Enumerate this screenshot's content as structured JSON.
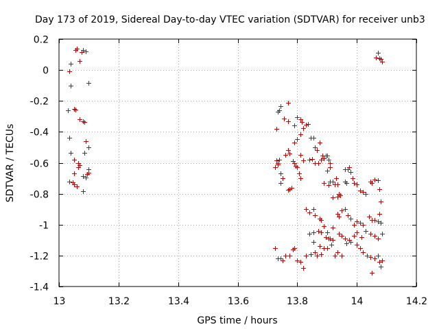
{
  "chart_data": {
    "type": "scatter",
    "title": "Day 173 of 2019, Sidereal Day-to-day VTEC variation (SDTVAR) for receiver unb3",
    "xlabel": "GPS time / hours",
    "ylabel": "SDTVAR / TECUs",
    "xlim": [
      13,
      14.2
    ],
    "ylim": [
      -1.4,
      0.2
    ],
    "xticks": [
      13,
      13.2,
      13.4,
      13.6,
      13.8,
      14,
      14.2
    ],
    "xtick_labels": [
      "13",
      "13.2",
      "13.4",
      "13.6",
      "13.8",
      "14",
      "14.2"
    ],
    "yticks": [
      0.2,
      0,
      -0.2,
      -0.4,
      -0.6,
      -0.8,
      -1,
      -1.2,
      -1.4
    ],
    "ytick_labels": [
      "0.2",
      "0",
      "-0.2",
      "-0.4",
      "-0.6",
      "-0.8",
      "-1",
      "-1.2",
      "-1.4"
    ],
    "grid": true,
    "marker": "+",
    "color": "#cc0000",
    "series": [
      {
        "name": "SDTVAR",
        "points": [
          [
            13.055,
            0.13
          ],
          [
            13.06,
            0.14
          ],
          [
            13.07,
            0.06
          ],
          [
            13.075,
            0.115
          ],
          [
            13.08,
            0.13
          ],
          [
            13.09,
            0.12
          ],
          [
            13.035,
            -0.01
          ],
          [
            13.04,
            0.04
          ],
          [
            13.04,
            -0.1
          ],
          [
            13.1,
            -0.085
          ],
          [
            13.03,
            -0.26
          ],
          [
            13.05,
            -0.25
          ],
          [
            13.055,
            -0.255
          ],
          [
            13.07,
            -0.32
          ],
          [
            13.08,
            -0.33
          ],
          [
            13.085,
            -0.335
          ],
          [
            13.035,
            -0.44
          ],
          [
            13.04,
            -0.535
          ],
          [
            13.09,
            -0.46
          ],
          [
            13.1,
            -0.5
          ],
          [
            13.085,
            -0.535
          ],
          [
            13.05,
            -0.58
          ],
          [
            13.065,
            -0.6
          ],
          [
            13.07,
            -0.615
          ],
          [
            13.065,
            -0.63
          ],
          [
            13.1,
            -0.64
          ],
          [
            13.05,
            -0.67
          ],
          [
            13.08,
            -0.685
          ],
          [
            13.09,
            -0.695
          ],
          [
            13.1,
            -0.665
          ],
          [
            13.095,
            -0.675
          ],
          [
            13.035,
            -0.72
          ],
          [
            13.045,
            -0.725
          ],
          [
            13.05,
            -0.74
          ],
          [
            13.06,
            -0.755
          ],
          [
            13.08,
            -0.785
          ],
          [
            14.065,
            0.08
          ],
          [
            14.07,
            0.11
          ],
          [
            14.075,
            0.075
          ],
          [
            14.08,
            0.07
          ],
          [
            14.085,
            0.055
          ],
          [
            13.77,
            -0.21
          ],
          [
            13.745,
            -0.235
          ],
          [
            13.735,
            -0.27
          ],
          [
            13.74,
            -0.26
          ],
          [
            13.755,
            -0.315
          ],
          [
            13.77,
            -0.33
          ],
          [
            13.73,
            -0.38
          ],
          [
            13.79,
            -0.36
          ],
          [
            13.8,
            -0.305
          ],
          [
            13.81,
            -0.32
          ],
          [
            13.815,
            -0.335
          ],
          [
            13.82,
            -0.375
          ],
          [
            13.83,
            -0.355
          ],
          [
            13.835,
            -0.35
          ],
          [
            13.845,
            -0.44
          ],
          [
            13.855,
            -0.44
          ],
          [
            13.86,
            -0.5
          ],
          [
            13.865,
            -0.52
          ],
          [
            13.875,
            -0.47
          ],
          [
            13.8,
            -0.445
          ],
          [
            13.81,
            -0.415
          ],
          [
            13.79,
            -0.47
          ],
          [
            13.77,
            -0.52
          ],
          [
            13.775,
            -0.54
          ],
          [
            13.76,
            -0.55
          ],
          [
            13.73,
            -0.585
          ],
          [
            13.735,
            -0.6
          ],
          [
            13.74,
            -0.58
          ],
          [
            13.725,
            -0.63
          ],
          [
            13.735,
            -0.61
          ],
          [
            13.745,
            -0.67
          ],
          [
            13.75,
            -0.7
          ],
          [
            13.745,
            -0.73
          ],
          [
            13.77,
            -0.775
          ],
          [
            13.775,
            -0.77
          ],
          [
            13.78,
            -0.76
          ],
          [
            13.79,
            -0.6
          ],
          [
            13.795,
            -0.62
          ],
          [
            13.8,
            -0.63
          ],
          [
            13.81,
            -0.55
          ],
          [
            13.805,
            -0.67
          ],
          [
            13.81,
            -0.7
          ],
          [
            13.785,
            -0.59
          ],
          [
            13.82,
            -0.585
          ],
          [
            13.84,
            -0.58
          ],
          [
            13.85,
            -0.575
          ],
          [
            13.86,
            -0.6
          ],
          [
            13.87,
            -0.6
          ],
          [
            13.88,
            -0.58
          ],
          [
            13.885,
            -0.555
          ],
          [
            13.89,
            -0.57
          ],
          [
            13.895,
            -0.555
          ],
          [
            13.9,
            -0.555
          ],
          [
            13.905,
            -0.58
          ],
          [
            13.91,
            -0.6
          ],
          [
            13.9,
            -0.65
          ],
          [
            13.91,
            -0.63
          ],
          [
            13.89,
            -0.73
          ],
          [
            13.905,
            -0.745
          ],
          [
            13.91,
            -0.72
          ],
          [
            13.92,
            -0.72
          ],
          [
            13.925,
            -0.74
          ],
          [
            13.93,
            -0.7
          ],
          [
            13.935,
            -0.74
          ],
          [
            13.94,
            -0.8
          ],
          [
            13.945,
            -0.81
          ],
          [
            13.92,
            -0.825
          ],
          [
            13.935,
            -0.82
          ],
          [
            13.96,
            -0.64
          ],
          [
            13.97,
            -0.64
          ],
          [
            13.975,
            -0.63
          ],
          [
            13.98,
            -0.66
          ],
          [
            13.96,
            -0.72
          ],
          [
            13.965,
            -0.73
          ],
          [
            13.985,
            -0.7
          ],
          [
            13.99,
            -0.73
          ],
          [
            14.0,
            -0.74
          ],
          [
            14.01,
            -0.78
          ],
          [
            14.02,
            -0.79
          ],
          [
            14.03,
            -0.8
          ],
          [
            14.045,
            -0.72
          ],
          [
            14.05,
            -0.73
          ],
          [
            14.06,
            -0.71
          ],
          [
            14.07,
            -0.715
          ],
          [
            14.075,
            -0.77
          ],
          [
            14.08,
            -0.85
          ],
          [
            13.83,
            -0.9
          ],
          [
            13.84,
            -0.92
          ],
          [
            13.855,
            -0.9
          ],
          [
            13.86,
            -0.94
          ],
          [
            13.875,
            -0.96
          ],
          [
            13.88,
            -0.97
          ],
          [
            13.89,
            -1.01
          ],
          [
            13.9,
            -1.05
          ],
          [
            13.91,
            -1.09
          ],
          [
            13.92,
            -1.02
          ],
          [
            13.935,
            -0.93
          ],
          [
            13.94,
            -0.95
          ],
          [
            13.95,
            -0.91
          ],
          [
            13.96,
            -0.9
          ],
          [
            13.97,
            -0.94
          ],
          [
            13.98,
            -0.96
          ],
          [
            13.99,
            -1.0
          ],
          [
            14.0,
            -0.98
          ],
          [
            14.01,
            -0.99
          ],
          [
            14.02,
            -1.0
          ],
          [
            14.04,
            -0.95
          ],
          [
            14.05,
            -0.97
          ],
          [
            14.06,
            -0.97
          ],
          [
            14.07,
            -0.98
          ],
          [
            14.075,
            -0.93
          ],
          [
            14.08,
            -0.99
          ],
          [
            13.84,
            -1.06
          ],
          [
            13.855,
            -1.05
          ],
          [
            13.87,
            -1.04
          ],
          [
            13.88,
            -1.05
          ],
          [
            13.895,
            -1.08
          ],
          [
            13.905,
            -1.09
          ],
          [
            13.92,
            -1.1
          ],
          [
            13.94,
            -1.06
          ],
          [
            13.95,
            -1.07
          ],
          [
            13.96,
            -1.09
          ],
          [
            13.975,
            -1.1
          ],
          [
            13.99,
            -1.07
          ],
          [
            14.0,
            -1.05
          ],
          [
            14.015,
            -1.08
          ],
          [
            14.03,
            -1.04
          ],
          [
            14.045,
            -1.06
          ],
          [
            14.06,
            -1.07
          ],
          [
            14.07,
            -1.09
          ],
          [
            14.085,
            -1.06
          ],
          [
            13.855,
            -1.11
          ],
          [
            13.875,
            -1.14
          ],
          [
            13.89,
            -1.15
          ],
          [
            13.9,
            -1.15
          ],
          [
            13.915,
            -1.13
          ],
          [
            13.925,
            -1.2
          ],
          [
            13.935,
            -1.18
          ],
          [
            13.95,
            -1.2
          ],
          [
            13.965,
            -1.12
          ],
          [
            13.98,
            -1.11
          ],
          [
            14.0,
            -1.13
          ],
          [
            14.01,
            -1.15
          ],
          [
            14.02,
            -1.18
          ],
          [
            14.035,
            -1.2
          ],
          [
            14.045,
            -1.21
          ],
          [
            14.06,
            -1.22
          ],
          [
            14.07,
            -1.2
          ],
          [
            14.075,
            -1.24
          ],
          [
            14.08,
            -1.27
          ],
          [
            14.085,
            -1.23
          ],
          [
            14.05,
            -1.31
          ],
          [
            13.725,
            -1.15
          ],
          [
            13.735,
            -1.22
          ],
          [
            13.745,
            -1.22
          ],
          [
            13.75,
            -1.23
          ],
          [
            13.76,
            -1.2
          ],
          [
            13.775,
            -1.2
          ],
          [
            13.785,
            -1.16
          ],
          [
            13.79,
            -1.15
          ],
          [
            13.8,
            -1.23
          ],
          [
            13.81,
            -1.24
          ],
          [
            13.82,
            -1.28
          ],
          [
            13.83,
            -1.2
          ],
          [
            13.845,
            -1.19
          ],
          [
            13.86,
            -1.18
          ],
          [
            13.865,
            -1.2
          ],
          [
            13.88,
            -1.19
          ]
        ]
      }
    ]
  }
}
